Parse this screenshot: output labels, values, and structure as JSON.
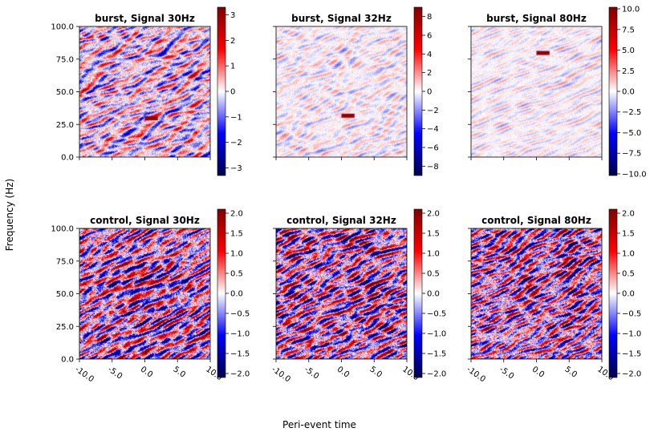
{
  "figure": {
    "ylabel": "Frequency (Hz)",
    "xlabel": "Peri-event time"
  },
  "chart_data": [
    {
      "type": "heatmap",
      "title": "burst, Signal 30Hz",
      "xlim": [
        -10,
        10
      ],
      "ylim": [
        0,
        100
      ],
      "xticks": [
        -10,
        -5,
        0,
        5,
        10
      ],
      "yticks": [
        0,
        25,
        50,
        75,
        100
      ],
      "xticklabels": [],
      "yticklabels": [
        "0.0",
        "25.0",
        "50.0",
        "75.0",
        "100.0"
      ],
      "colorbar": {
        "min": -3.3,
        "max": 3.3,
        "ticks": [
          -3,
          -2,
          -1,
          0,
          1,
          2,
          3
        ],
        "ticklabels": [
          "−3",
          "−2",
          "−1",
          "0",
          "1",
          "2",
          "3"
        ],
        "cmap": "seismic"
      },
      "noise_amplitude": 1.3,
      "bursts": [
        {
          "t_start": 0,
          "t_end": 2,
          "freq": 30,
          "value": 3.3
        }
      ]
    },
    {
      "type": "heatmap",
      "title": "burst, Signal 32Hz",
      "xlim": [
        -10,
        10
      ],
      "ylim": [
        0,
        100
      ],
      "xticks": [
        -10,
        -5,
        0,
        5,
        10
      ],
      "yticks": [
        0,
        25,
        50,
        75,
        100
      ],
      "xticklabels": [],
      "yticklabels": [],
      "colorbar": {
        "min": -9,
        "max": 9,
        "ticks": [
          -8,
          -6,
          -4,
          -2,
          0,
          2,
          4,
          6,
          8
        ],
        "ticklabels": [
          "−8",
          "−6",
          "−4",
          "−2",
          "0",
          "2",
          "4",
          "6",
          "8"
        ],
        "cmap": "seismic"
      },
      "noise_amplitude": 1.3,
      "bursts": [
        {
          "t_start": 0,
          "t_end": 2,
          "freq": 32,
          "value": 9
        }
      ]
    },
    {
      "type": "heatmap",
      "title": "burst, Signal 80Hz",
      "xlim": [
        -10,
        10
      ],
      "ylim": [
        0,
        100
      ],
      "xticks": [
        -10,
        -5,
        0,
        5,
        10
      ],
      "yticks": [
        0,
        25,
        50,
        75,
        100
      ],
      "xticklabels": [],
      "yticklabels": [],
      "colorbar": {
        "min": -10.2,
        "max": 10.2,
        "ticks": [
          -10,
          -7.5,
          -5,
          -2.5,
          0,
          2.5,
          5,
          7.5,
          10
        ],
        "ticklabels": [
          "−10.0",
          "−7.5",
          "−5.0",
          "−2.5",
          "0.0",
          "2.5",
          "5.0",
          "7.5",
          "10.0"
        ],
        "cmap": "seismic"
      },
      "noise_amplitude": 1.3,
      "bursts": [
        {
          "t_start": 0,
          "t_end": 2,
          "freq": 80,
          "value": 10.2
        }
      ]
    },
    {
      "type": "heatmap",
      "title": "control, Signal 30Hz",
      "xlim": [
        -10,
        10
      ],
      "ylim": [
        0,
        100
      ],
      "xticks": [
        -10,
        -5,
        0,
        5,
        10
      ],
      "yticks": [
        0,
        25,
        50,
        75,
        100
      ],
      "xticklabels": [
        "-10.0",
        "-5.0",
        "0.0",
        "5.0",
        "10.0"
      ],
      "yticklabels": [
        "0.0",
        "25.0",
        "50.0",
        "75.0",
        "100.0"
      ],
      "colorbar": {
        "min": -2.1,
        "max": 2.1,
        "ticks": [
          -2,
          -1.5,
          -1,
          -0.5,
          0,
          0.5,
          1,
          1.5,
          2
        ],
        "ticklabels": [
          "−2.0",
          "−1.5",
          "−1.0",
          "−0.5",
          "0.0",
          "0.5",
          "1.0",
          "1.5",
          "2.0"
        ],
        "cmap": "seismic"
      },
      "noise_amplitude": 1.6,
      "bursts": []
    },
    {
      "type": "heatmap",
      "title": "control, Signal 32Hz",
      "xlim": [
        -10,
        10
      ],
      "ylim": [
        0,
        100
      ],
      "xticks": [
        -10,
        -5,
        0,
        5,
        10
      ],
      "yticks": [
        0,
        25,
        50,
        75,
        100
      ],
      "xticklabels": [
        "-10.0",
        "-5.0",
        "0.0",
        "5.0",
        "10.0"
      ],
      "yticklabels": [],
      "colorbar": {
        "min": -2.1,
        "max": 2.1,
        "ticks": [
          -2,
          -1.5,
          -1,
          -0.5,
          0,
          0.5,
          1,
          1.5,
          2
        ],
        "ticklabels": [
          "−2.0",
          "−1.5",
          "−1.0",
          "−0.5",
          "0.0",
          "0.5",
          "1.0",
          "1.5",
          "2.0"
        ],
        "cmap": "seismic"
      },
      "noise_amplitude": 1.6,
      "bursts": []
    },
    {
      "type": "heatmap",
      "title": "control, Signal 80Hz",
      "xlim": [
        -10,
        10
      ],
      "ylim": [
        0,
        100
      ],
      "xticks": [
        -10,
        -5,
        0,
        5,
        10
      ],
      "yticks": [
        0,
        25,
        50,
        75,
        100
      ],
      "xticklabels": [
        "-10.0",
        "-5.0",
        "0.0",
        "5.0",
        "10.0"
      ],
      "yticklabels": [],
      "colorbar": {
        "min": -2.1,
        "max": 2.1,
        "ticks": [
          -2,
          -1.5,
          -1,
          -0.5,
          0,
          0.5,
          1,
          1.5,
          2
        ],
        "ticklabels": [
          "−2.0",
          "−1.5",
          "−1.0",
          "−0.5",
          "0.0",
          "0.5",
          "1.0",
          "1.5",
          "2.0"
        ],
        "cmap": "seismic"
      },
      "noise_amplitude": 1.6,
      "bursts": []
    }
  ]
}
